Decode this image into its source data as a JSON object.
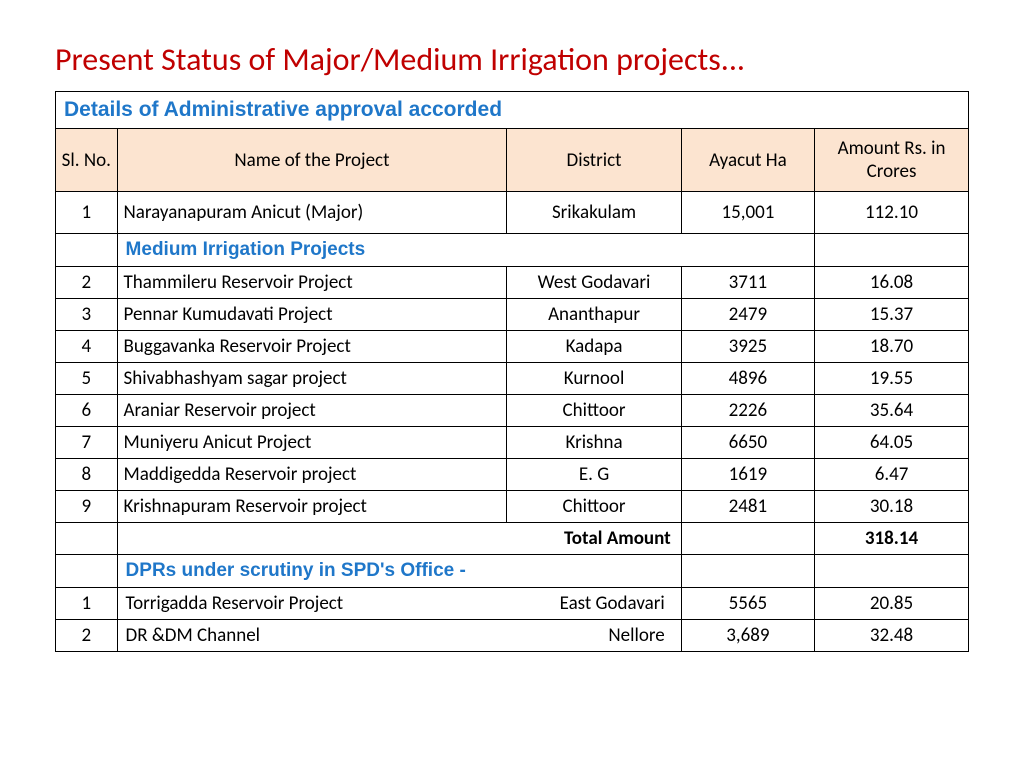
{
  "title": "Present Status of Major/Medium Irrigation projects...",
  "table_title": "Details of Administrative approval accorded",
  "columns": {
    "sl": "Sl. No.",
    "name": "Name of the Project",
    "district": "District",
    "ayacut": "Ayacut Ha",
    "amount": "Amount Rs. in Crores"
  },
  "major_row": {
    "sl": "1",
    "name": "Narayanapuram Anicut (Major)",
    "district": "Srikakulam",
    "ayacut": "15,001",
    "amount": "112.10"
  },
  "medium_section": "Medium Irrigation Projects",
  "medium_rows": [
    {
      "sl": "2",
      "name": "Thammileru Reservoir Project",
      "district": "West Godavari",
      "ayacut": "3711",
      "amount": "16.08"
    },
    {
      "sl": "3",
      "name": "Pennar Kumudavati Project",
      "district": "Ananthapur",
      "ayacut": "2479",
      "amount": "15.37"
    },
    {
      "sl": "4",
      "name": "Buggavanka Reservoir Project",
      "district": "Kadapa",
      "ayacut": "3925",
      "amount": "18.70"
    },
    {
      "sl": "5",
      "name": "Shivabhashyam sagar project",
      "district": "Kurnool",
      "ayacut": "4896",
      "amount": "19.55"
    },
    {
      "sl": "6",
      "name": "Araniar Reservoir project",
      "district": "Chittoor",
      "ayacut": "2226",
      "amount": "35.64"
    },
    {
      "sl": "7",
      "name": "Muniyeru Anicut Project",
      "district": "Krishna",
      "ayacut": "6650",
      "amount": "64.05"
    },
    {
      "sl": "8",
      "name": "Maddigedda Reservoir project",
      "district": "E. G",
      "ayacut": "1619",
      "amount": "6.47"
    },
    {
      "sl": "9",
      "name": "Krishnapuram Reservoir project",
      "district": "Chittoor",
      "ayacut": "2481",
      "amount": "30.18"
    }
  ],
  "total_label": "Total Amount",
  "total_amount": "318.14",
  "dpr_section": "DPRs under scrutiny in SPD's Office -",
  "dpr_rows": [
    {
      "sl": "1",
      "name": "Torrigadda Reservoir Project",
      "district": "East Godavari",
      "ayacut": "5565",
      "amount": "20.85"
    },
    {
      "sl": "2",
      "name": "DR &DM Channel",
      "district": "Nellore",
      "ayacut": "3,689",
      "amount": "32.48"
    }
  ],
  "style": {
    "title_color": "#c00000",
    "section_color": "#1f77c9",
    "header_bg": "#fce4d0",
    "border_color": "#000000",
    "title_fontsize": 32,
    "body_fontsize": 19,
    "section_fontsize": 19
  }
}
